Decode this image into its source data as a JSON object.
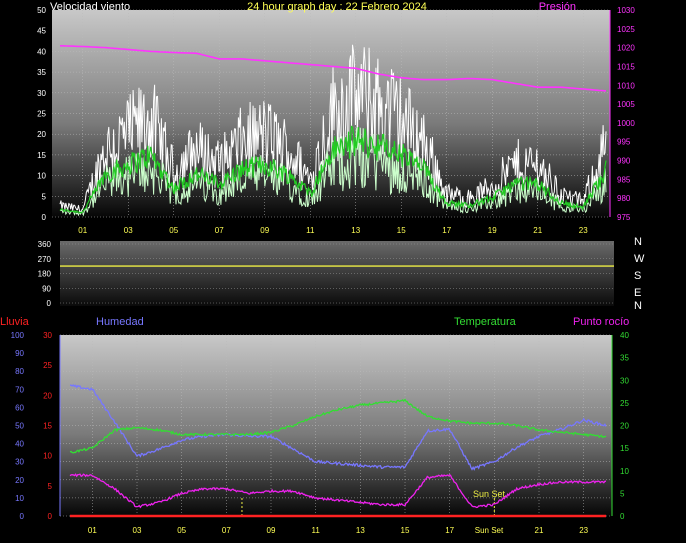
{
  "title": "24 hour graph day : 22 Febrero 2024",
  "colors": {
    "wind": "#ffffff",
    "wind_avg": "#22cc22",
    "wind_light": "#ccffcc",
    "pressure": "#ff33ff",
    "humidity": "#7777ff",
    "temperature": "#33dd33",
    "dewpoint": "#ee22ee",
    "rain": "#ff2222",
    "direction": "#eeee44",
    "sunset": "#eeee44",
    "left_axis": "#ffffff",
    "rain_axis": "#ff2222",
    "humidity_axis": "#7777ff",
    "temp_axis": "#33dd33",
    "pressure_axis": "#ff33ff",
    "time_axis": "#ffff55"
  },
  "time_ticks": [
    "01",
    "03",
    "05",
    "07",
    "09",
    "11",
    "13",
    "15",
    "17",
    "19",
    "21",
    "23"
  ],
  "wind_panel": {
    "label_left": "Velocidad viento",
    "label_right": "Presión",
    "ylim": [
      0,
      50
    ],
    "yticks": [
      "0",
      "5",
      "10",
      "15",
      "20",
      "25",
      "30",
      "35",
      "40",
      "45",
      "50"
    ],
    "pressure_ylim": [
      975,
      1030
    ],
    "pressure_ticks": [
      "975",
      "980",
      "985",
      "990",
      "995",
      "1000",
      "1005",
      "1010",
      "1015",
      "1020",
      "1025",
      "1030"
    ]
  },
  "dir_panel": {
    "ylim": [
      0,
      360
    ],
    "yticks": [
      "0",
      "90",
      "180",
      "270",
      "360"
    ],
    "compass": [
      "N",
      "W",
      "S",
      "E",
      "N"
    ]
  },
  "bottom_panel": {
    "label_rain": "Lluvia",
    "label_hum": "Humedad",
    "label_temp": "Temperatura",
    "label_dew": "Punto rocío",
    "rain_ticks": [
      "0",
      "5",
      "10",
      "15",
      "20",
      "25",
      "30"
    ],
    "hum_ticks": [
      "0",
      "10",
      "20",
      "30",
      "40",
      "50",
      "60",
      "70",
      "80",
      "90",
      "100"
    ],
    "temp_ticks": [
      "0",
      "5",
      "10",
      "15",
      "20",
      "25",
      "30",
      "35",
      "40"
    ],
    "sunset_label": "Sun Set",
    "sunset_axis_label": "Sun Set"
  },
  "chart_data": [
    {
      "type": "line",
      "title": "24 hour graph day : 22 Febrero 2024",
      "ylabel": "Velocidad viento",
      "ylim": [
        0,
        50
      ],
      "x": [
        0,
        1,
        2,
        3,
        4,
        5,
        6,
        7,
        8,
        9,
        10,
        11,
        12,
        13,
        14,
        15,
        16,
        17,
        18,
        19,
        20,
        21,
        22,
        23,
        24
      ],
      "series": [
        {
          "name": "Velocidad viento",
          "values": [
            3,
            2,
            18,
            22,
            26,
            12,
            18,
            14,
            20,
            22,
            18,
            10,
            28,
            32,
            30,
            26,
            20,
            6,
            5,
            8,
            14,
            14,
            6,
            4,
            20
          ]
        },
        {
          "name": "Presión",
          "y_axis": "right",
          "ylim": [
            975,
            1030
          ],
          "values": [
            1020.5,
            1020.3,
            1020.0,
            1019.5,
            1019.0,
            1018.7,
            1018.5,
            1017.0,
            1017.0,
            1016.5,
            1016.0,
            1015.5,
            1015.0,
            1014.5,
            1013.0,
            1012.0,
            1011.5,
            1011.5,
            1011.8,
            1011.5,
            1010.5,
            1009.5,
            1009.5,
            1009.0,
            1008.5
          ]
        }
      ]
    },
    {
      "type": "line",
      "ylim": [
        0,
        360
      ],
      "x": [
        0,
        24
      ],
      "series": [
        {
          "values": [
            225,
            225
          ]
        }
      ]
    },
    {
      "type": "line",
      "x": [
        0,
        1,
        2,
        3,
        4,
        5,
        6,
        7,
        8,
        9,
        10,
        11,
        12,
        13,
        14,
        15,
        16,
        17,
        18,
        19,
        20,
        21,
        22,
        23,
        24
      ],
      "series": [
        {
          "name": "Humedad",
          "y_axis": "humidity",
          "ylim": [
            0,
            100
          ],
          "values": [
            72,
            70,
            52,
            33,
            37,
            42,
            44,
            45,
            44,
            44,
            37,
            30,
            29,
            28,
            27,
            27,
            47,
            48,
            26,
            30,
            38,
            44,
            48,
            53,
            50
          ]
        },
        {
          "name": "Temperatura",
          "y_axis": "temperature",
          "ylim": [
            0,
            40
          ],
          "values": [
            14,
            15,
            19,
            19.5,
            19,
            18,
            18,
            18,
            18,
            18.5,
            20,
            22,
            23.5,
            24.5,
            25,
            25.5,
            22,
            21,
            20.5,
            20.5,
            20,
            19,
            18.5,
            18,
            17.5
          ]
        },
        {
          "name": "Punto rocío",
          "y_axis": "temperature",
          "ylim": [
            0,
            40
          ],
          "values": [
            9,
            9,
            6,
            2,
            3,
            5,
            6,
            6,
            5,
            5.5,
            5.5,
            4,
            3.5,
            3,
            2.5,
            2.5,
            8.5,
            9,
            2,
            2.5,
            6,
            7,
            7.5,
            7.5,
            7.5
          ]
        },
        {
          "name": "Lluvia",
          "y_axis": "rain",
          "ylim": [
            0,
            30
          ],
          "values": [
            0,
            0,
            0,
            0,
            0,
            0,
            0,
            0,
            0,
            0,
            0,
            0,
            0,
            0,
            0,
            0,
            0,
            0,
            0,
            0,
            0,
            0,
            0,
            0,
            0
          ]
        }
      ]
    }
  ]
}
